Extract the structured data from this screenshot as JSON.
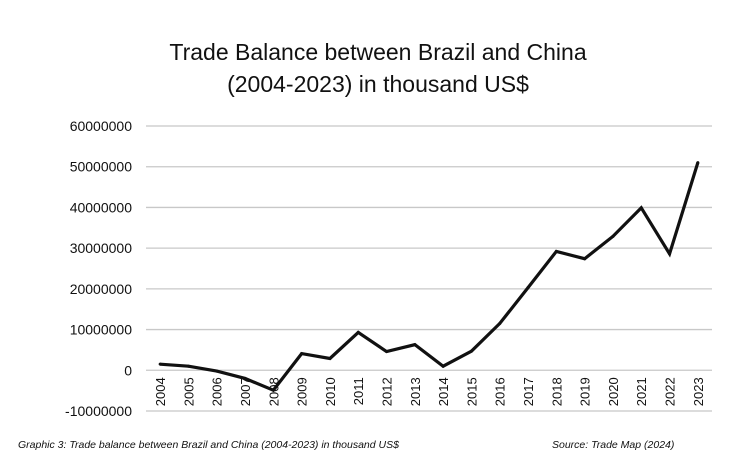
{
  "chart_data": {
    "type": "line",
    "title_line1": "Trade Balance between Brazil and China",
    "title_line2": "(2004-2023) in thousand US$",
    "categories": [
      "2004",
      "2005",
      "2006",
      "2007",
      "2008",
      "2009",
      "2010",
      "2011",
      "2012",
      "2013",
      "2014",
      "2015",
      "2016",
      "2017",
      "2018",
      "2019",
      "2020",
      "2021",
      "2022",
      "2023"
    ],
    "values": [
      1500000,
      1000000,
      -200000,
      -2000000,
      -4900000,
      4100000,
      2900000,
      9300000,
      4600000,
      6300000,
      1000000,
      4700000,
      11500000,
      20300000,
      29200000,
      27400000,
      32900000,
      39900000,
      28600000,
      51000000
    ],
    "ylim": [
      -10000000,
      60000000
    ],
    "yticks": [
      "-10000000",
      "0",
      "10000000",
      "20000000",
      "30000000",
      "40000000",
      "50000000",
      "60000000"
    ],
    "grid": true,
    "line_color": "#111111"
  },
  "caption": "Graphic 3: Trade balance between Brazil and China (2004-2023) in thousand US$",
  "source": "Source: Trade Map (2024)"
}
